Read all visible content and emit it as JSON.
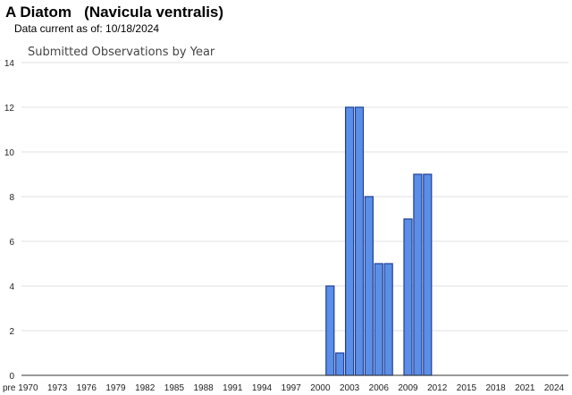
{
  "header": {
    "title": "A Diatom   (Navicula ventralis)",
    "subtitle": "Data current as of: 10/18/2024"
  },
  "chart_data": {
    "type": "bar",
    "title": "Submitted Observations by Year",
    "xlabel": "",
    "ylabel": "",
    "ylim": [
      0,
      14
    ],
    "yticks": [
      0,
      2,
      4,
      6,
      8,
      10,
      12,
      14
    ],
    "grid": true,
    "legend": "none",
    "bar_color": "#5b8ee6",
    "bar_edge_color": "#1f3f96",
    "x_tick_labels": [
      "pre",
      "1970",
      "1973",
      "1976",
      "1979",
      "1982",
      "1985",
      "1988",
      "1991",
      "1994",
      "1997",
      "2000",
      "2003",
      "2006",
      "2009",
      "2012",
      "2015",
      "2018",
      "2021",
      "2024"
    ],
    "categories": [
      "pre",
      "1970",
      "1971",
      "1972",
      "1973",
      "1974",
      "1975",
      "1976",
      "1977",
      "1978",
      "1979",
      "1980",
      "1981",
      "1982",
      "1983",
      "1984",
      "1985",
      "1986",
      "1987",
      "1988",
      "1989",
      "1990",
      "1991",
      "1992",
      "1993",
      "1994",
      "1995",
      "1996",
      "1997",
      "1998",
      "1999",
      "2000",
      "2001",
      "2002",
      "2003",
      "2004",
      "2005",
      "2006",
      "2007",
      "2008",
      "2009",
      "2010",
      "2011",
      "2012",
      "2013",
      "2014",
      "2015",
      "2016",
      "2017",
      "2018",
      "2019",
      "2020",
      "2021",
      "2022",
      "2023",
      "2024"
    ],
    "values": [
      0,
      0,
      0,
      0,
      0,
      0,
      0,
      0,
      0,
      0,
      0,
      0,
      0,
      0,
      0,
      0,
      0,
      0,
      0,
      0,
      0,
      0,
      0,
      0,
      0,
      0,
      0,
      0,
      0,
      0,
      0,
      0,
      4,
      1,
      12,
      12,
      8,
      5,
      5,
      0,
      7,
      9,
      9,
      0,
      0,
      0,
      0,
      0,
      0,
      0,
      0,
      0,
      0,
      0,
      0,
      0
    ]
  }
}
